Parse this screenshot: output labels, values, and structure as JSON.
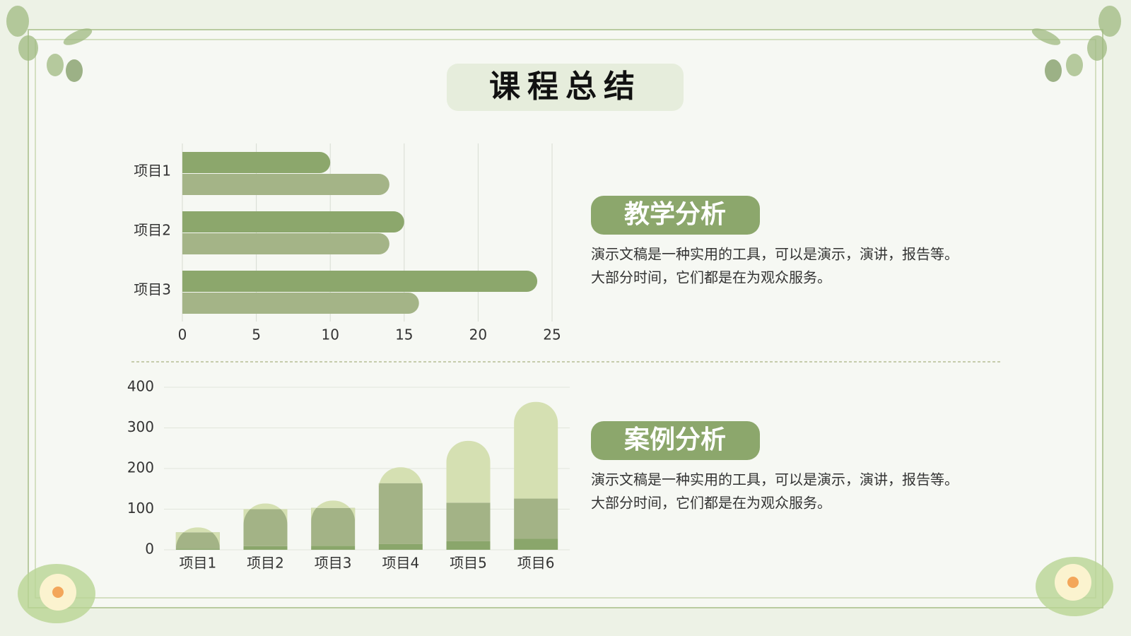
{
  "title": "课程总结",
  "chart_data": [
    {
      "type": "hbar",
      "categories": [
        "项目1",
        "项目2",
        "项目3"
      ],
      "series": [
        {
          "color": "#8ca76c",
          "values": [
            10,
            15,
            24
          ]
        },
        {
          "color": "#a4b487",
          "values": [
            14,
            14,
            16
          ]
        }
      ],
      "xlim": [
        0,
        25
      ],
      "xticks": [
        0,
        5,
        10,
        15,
        20,
        25
      ],
      "grid": true
    },
    {
      "type": "stacked-column",
      "categories": [
        "项目1",
        "项目2",
        "项目3",
        "项目4",
        "项目5",
        "项目6"
      ],
      "series": [
        {
          "color": "#8aa66b",
          "values": [
            3,
            9,
            10,
            14,
            21,
            27
          ]
        },
        {
          "color": "#a3b386",
          "values": [
            40,
            91,
            93,
            150,
            95,
            99
          ]
        },
        {
          "color": "#d5e0b2",
          "values": [
            12,
            14,
            18,
            39,
            152,
            238
          ]
        }
      ],
      "ylim": [
        0,
        400
      ],
      "yticks": [
        0,
        100,
        200,
        300,
        400
      ],
      "grid": true
    }
  ],
  "sections": [
    {
      "heading": "教学分析",
      "lines": [
        "演示文稿是一种实用的工具，可以是演示，演讲，报告等。",
        "大部分时间，它们都是在为观众服务。"
      ]
    },
    {
      "heading": "案例分析",
      "lines": [
        "演示文稿是一种实用的工具，可以是演示，演讲，报告等。",
        "大部分时间，它们都是在为观众服务。"
      ]
    }
  ]
}
